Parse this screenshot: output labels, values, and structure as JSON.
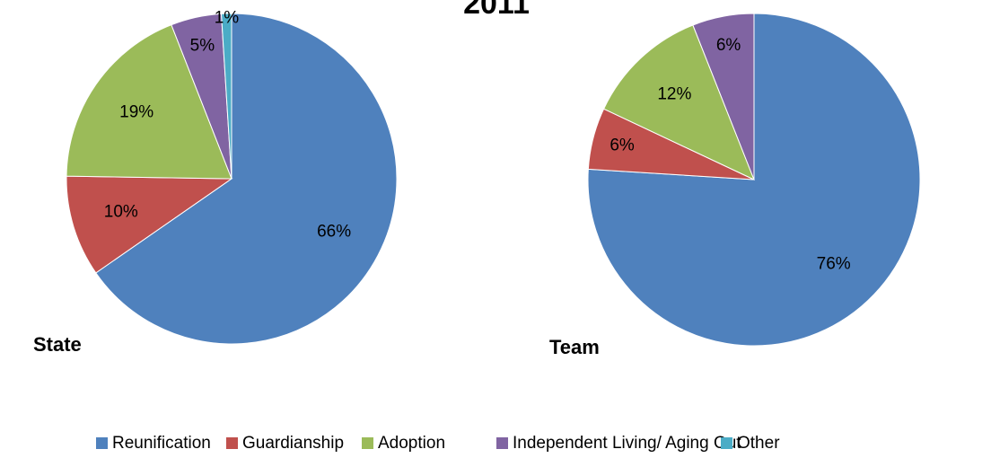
{
  "title": "2011",
  "chart_data": [
    {
      "type": "pie",
      "title": "State",
      "categories": [
        "Reunification",
        "Guardianship",
        "Adoption",
        "Independent Living/ Aging Out",
        "Other"
      ],
      "values": [
        66,
        10,
        19,
        5,
        1
      ],
      "value_labels": [
        "66%",
        "10%",
        "19%",
        "5%",
        "1%"
      ],
      "colors": [
        "#4f81bd",
        "#c0504d",
        "#9bbb59",
        "#8064a2",
        "#4bacc6"
      ],
      "legend": "bottom"
    },
    {
      "type": "pie",
      "title": "Team",
      "categories": [
        "Reunification",
        "Guardianship",
        "Adoption",
        "Independent Living/ Aging Out"
      ],
      "values": [
        76,
        6,
        12,
        6
      ],
      "value_labels": [
        "76%",
        "6%",
        "12%",
        "6%"
      ],
      "colors": [
        "#4f81bd",
        "#c0504d",
        "#9bbb59",
        "#8064a2"
      ]
    }
  ]
}
